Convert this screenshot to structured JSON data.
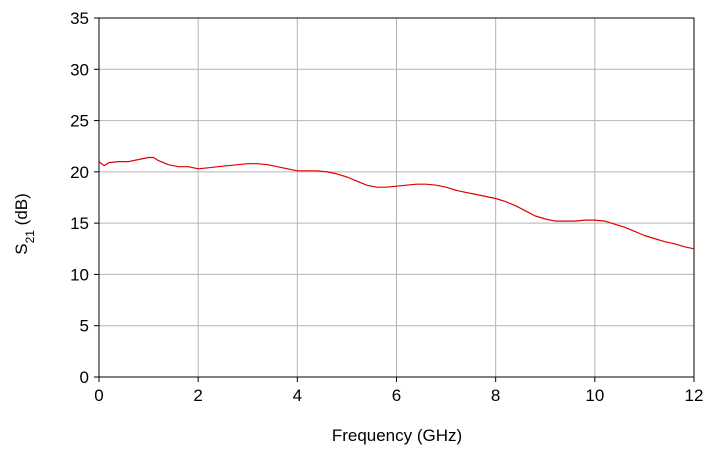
{
  "chart_data": {
    "type": "line",
    "title": "",
    "xlabel": "Frequency (GHz)",
    "ylabel_main": "S",
    "ylabel_sub": "21",
    "ylabel_unit": " (dB)",
    "xlim": [
      0,
      12
    ],
    "ylim": [
      0,
      35
    ],
    "xticks": [
      0,
      2,
      4,
      6,
      8,
      10,
      12
    ],
    "yticks": [
      0,
      5,
      10,
      15,
      20,
      25,
      30,
      35
    ],
    "grid": true,
    "series": [
      {
        "color": "#e00000",
        "x": [
          0,
          0.1,
          0.2,
          0.4,
          0.6,
          0.8,
          1.0,
          1.1,
          1.2,
          1.4,
          1.6,
          1.8,
          2.0,
          2.2,
          2.4,
          2.6,
          2.8,
          3.0,
          3.2,
          3.4,
          3.6,
          3.8,
          4.0,
          4.2,
          4.4,
          4.6,
          4.8,
          5.0,
          5.2,
          5.4,
          5.6,
          5.8,
          6.0,
          6.2,
          6.4,
          6.6,
          6.8,
          7.0,
          7.2,
          7.4,
          7.6,
          7.8,
          8.0,
          8.2,
          8.4,
          8.6,
          8.8,
          9.0,
          9.2,
          9.4,
          9.6,
          9.8,
          10.0,
          10.2,
          10.4,
          10.6,
          10.8,
          11.0,
          11.2,
          11.4,
          11.6,
          11.8,
          12.0
        ],
        "y": [
          21.0,
          20.6,
          20.9,
          21.0,
          21.0,
          21.2,
          21.4,
          21.4,
          21.1,
          20.7,
          20.5,
          20.5,
          20.3,
          20.4,
          20.5,
          20.6,
          20.7,
          20.8,
          20.8,
          20.7,
          20.5,
          20.3,
          20.1,
          20.1,
          20.1,
          20.0,
          19.8,
          19.5,
          19.1,
          18.7,
          18.5,
          18.5,
          18.6,
          18.7,
          18.8,
          18.8,
          18.7,
          18.5,
          18.2,
          18.0,
          17.8,
          17.6,
          17.4,
          17.1,
          16.7,
          16.2,
          15.7,
          15.4,
          15.2,
          15.2,
          15.2,
          15.3,
          15.3,
          15.2,
          14.9,
          14.6,
          14.2,
          13.8,
          13.5,
          13.2,
          13.0,
          12.7,
          12.5
        ]
      }
    ]
  }
}
